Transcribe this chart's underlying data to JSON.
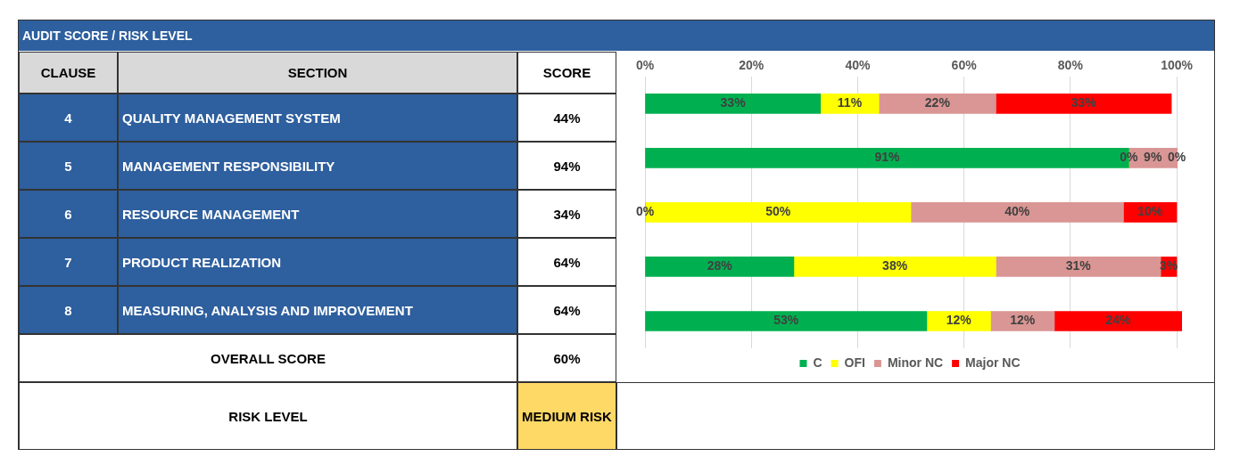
{
  "chart_data": {
    "type": "bar",
    "orientation": "horizontal",
    "stacked": true,
    "title": "AUDIT SCORE / RISK LEVEL",
    "categories": [
      null,
      null,
      null,
      null,
      null
    ],
    "series": [
      {
        "name": "C",
        "color": "#00b050",
        "values": [
          33,
          91,
          0,
          28,
          53
        ],
        "value_labels": [
          "33%",
          "91%",
          "0%",
          "28%",
          "53%"
        ]
      },
      {
        "name": "OFI",
        "color": "#ffff00",
        "values": [
          11,
          0,
          50,
          38,
          12
        ],
        "value_labels": [
          "11%",
          "0%",
          "50%",
          "38%",
          "12%"
        ]
      },
      {
        "name": "Minor NC",
        "color": "#da9694",
        "values": [
          22,
          9,
          40,
          31,
          12
        ],
        "value_labels": [
          "22%",
          "9%",
          "40%",
          "31%",
          "12%"
        ]
      },
      {
        "name": "Major NC",
        "color": "#ff0000",
        "values": [
          33,
          0,
          10,
          3,
          24
        ],
        "value_labels": [
          "33%",
          "0%",
          "10%",
          "3%",
          "24%"
        ]
      }
    ],
    "xlim": [
      0,
      101
    ],
    "xticks": [
      {
        "value": 0,
        "label": "0%"
      },
      {
        "value": 20,
        "label": "20%"
      },
      {
        "value": 40,
        "label": "40%"
      },
      {
        "value": 60,
        "label": "60%"
      },
      {
        "value": 80,
        "label": "80%"
      },
      {
        "value": 100,
        "label": "100%"
      }
    ],
    "grid": "x",
    "legend": "bottom",
    "tick_labels": "x",
    "annotations": [
      "CLAUSE",
      "SECTION",
      "SCORE",
      "4",
      "QUALITY MANAGEMENT SYSTEM",
      "44%",
      "5",
      "MANAGEMENT RESPONSIBILITY",
      "94%",
      "6",
      "RESOURCE MANAGEMENT",
      "34%",
      "7",
      "PRODUCT REALIZATION",
      "64%",
      "8",
      "MEASURING, ANALYSIS AND IMPROVEMENT",
      "64%",
      "OVERALL SCORE",
      "60%",
      "RISK LEVEL",
      "MEDIUM RISK"
    ]
  }
}
